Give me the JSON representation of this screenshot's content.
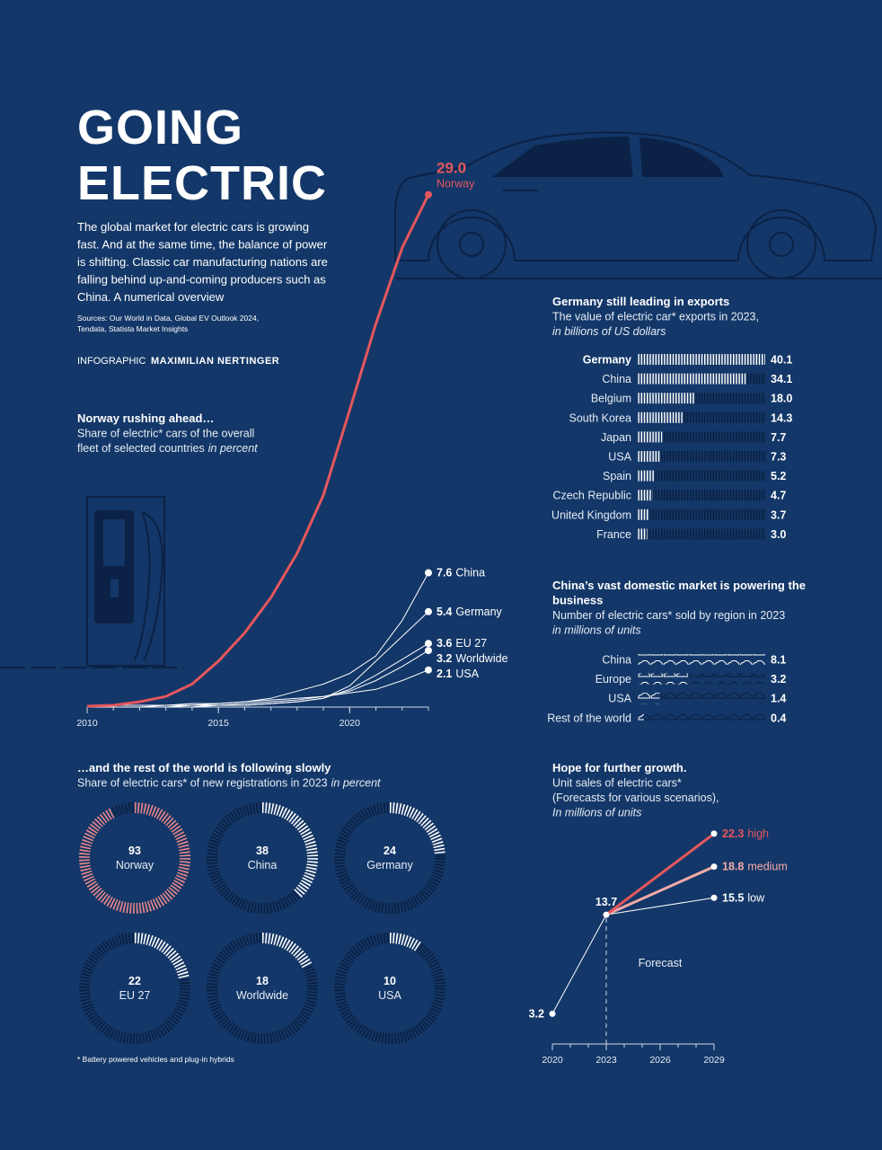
{
  "header": {
    "title": [
      "GOING",
      "ELECTRIC"
    ],
    "intro": [
      "The global market for electric cars is growing",
      "fast. And at the same time, the balance of power",
      "is shifting. Classic car manufacturing nations are",
      "falling behind up-and-coming producers such as",
      "China. A numerical overview"
    ],
    "sources": [
      "Sources: Our World in Data, Global EV Outlook 2024,",
      "Tendata, Statista Market Insights"
    ],
    "kicker": "INFOGRAPHIC",
    "author": "MAXIMILIAN NERTINGER"
  },
  "chart_data": [
    {
      "type": "line",
      "title": "Norway rushing ahead…",
      "subtitle": [
        "Share of electric* cars of the overall",
        "fleet of selected countries"
      ],
      "unit": "in percent",
      "x": [
        2010,
        2011,
        2012,
        2013,
        2014,
        2015,
        2016,
        2017,
        2018,
        2019,
        2020,
        2021,
        2022,
        2023
      ],
      "xlim": [
        2010,
        2023
      ],
      "xticks": [
        2010,
        2015,
        2020
      ],
      "ylim": [
        0,
        30
      ],
      "series": [
        {
          "name": "Norway",
          "color": "#e5575c",
          "values": [
            0.05,
            0.1,
            0.3,
            0.6,
            1.3,
            2.6,
            4.2,
            6.2,
            8.7,
            12.0,
            16.8,
            21.7,
            26.0,
            29.0
          ],
          "value_labels": [
            null,
            null,
            null,
            null,
            null,
            null,
            null,
            null,
            null,
            null,
            null,
            null,
            null,
            "29.0"
          ]
        },
        {
          "name": "China",
          "color": "#ffffff",
          "values": [
            0,
            0,
            0,
            0.1,
            0.1,
            0.2,
            0.3,
            0.5,
            0.9,
            1.3,
            1.9,
            2.9,
            4.9,
            7.6
          ],
          "value_labels": [
            null,
            null,
            null,
            null,
            null,
            null,
            null,
            null,
            null,
            null,
            null,
            null,
            null,
            "7.6"
          ]
        },
        {
          "name": "Germany",
          "color": "#ffffff",
          "values": [
            0,
            0,
            0,
            0,
            0,
            0.1,
            0.1,
            0.2,
            0.3,
            0.5,
            1.2,
            2.6,
            4.0,
            5.4
          ],
          "value_labels": [
            null,
            null,
            null,
            null,
            null,
            null,
            null,
            null,
            null,
            null,
            null,
            null,
            null,
            "5.4"
          ]
        },
        {
          "name": "Worldwide",
          "color": "#ffffff",
          "values": [
            0,
            0,
            0,
            0,
            0.1,
            0.1,
            0.2,
            0.3,
            0.4,
            0.6,
            0.9,
            1.5,
            2.3,
            3.2
          ],
          "value_labels": [
            null,
            null,
            null,
            null,
            null,
            null,
            null,
            null,
            null,
            null,
            null,
            null,
            null,
            "3.2"
          ]
        },
        {
          "name": "EU 27",
          "color": "#ffffff",
          "values": [
            0,
            0,
            0,
            0,
            0,
            0.1,
            0.1,
            0.2,
            0.3,
            0.5,
            1.0,
            1.8,
            2.7,
            3.6
          ],
          "value_labels": [
            null,
            null,
            null,
            null,
            null,
            null,
            null,
            null,
            null,
            null,
            null,
            null,
            null,
            "3.6"
          ]
        },
        {
          "name": "USA",
          "color": "#ffffff",
          "values": [
            0.1,
            0.1,
            0.1,
            0.1,
            0.2,
            0.2,
            0.3,
            0.4,
            0.5,
            0.6,
            0.8,
            1.0,
            1.5,
            2.1
          ],
          "value_labels": [
            null,
            null,
            null,
            null,
            null,
            null,
            null,
            null,
            null,
            null,
            null,
            null,
            null,
            "2.1"
          ]
        }
      ]
    },
    {
      "type": "bar",
      "title": "Germany still leading in exports",
      "subtitle": [
        "The value of electric car* exports in 2023,"
      ],
      "unit": "in billions of US dollars",
      "categories": [
        "Germany",
        "China",
        "Belgium",
        "South Korea",
        "Japan",
        "USA",
        "Spain",
        "Czech Republic",
        "United Kingdom",
        "France"
      ],
      "values": [
        40.1,
        34.1,
        18.0,
        14.3,
        7.7,
        7.3,
        5.2,
        4.7,
        3.7,
        3.0
      ],
      "value_labels": [
        "40.1",
        "34.1",
        "18.0",
        "14.3",
        "7.7",
        "7.3",
        "5.2",
        "4.7",
        "3.7",
        "3.0"
      ],
      "xlim": [
        0,
        40.1
      ],
      "color": "#ffffff"
    },
    {
      "type": "bar",
      "title": [
        "China’s vast domestic market is powering the",
        "business"
      ],
      "subtitle": [
        "Number of electric cars* sold by region in 2023"
      ],
      "unit": "in millions of units",
      "categories": [
        "China",
        "Europe",
        "USA",
        "Rest of the world"
      ],
      "values": [
        8.1,
        3.2,
        1.4,
        0.4
      ],
      "xlim": [
        0,
        8.1
      ],
      "color": "#ffffff"
    },
    {
      "type": "donut",
      "title": "…and the rest of the world is following slowly",
      "subtitle": [
        "Share of electric cars* of new registrations in 2023"
      ],
      "unit": "in percent",
      "categories": [
        "Norway",
        "China",
        "Germany",
        "EU 27",
        "Worldwide",
        "USA"
      ],
      "values": [
        93,
        38,
        24,
        22,
        18,
        10
      ],
      "ylim": [
        0,
        100
      ],
      "colors": [
        "#e8898d",
        "#ffffff",
        "#ffffff",
        "#ffffff",
        "#ffffff",
        "#ffffff"
      ]
    },
    {
      "type": "line",
      "title": "Hope for further growth.",
      "subtitle": [
        "Unit sales of electric cars*",
        "(Forecasts for various scenarios),"
      ],
      "unit": "In millions of units",
      "x": [
        2020,
        2023,
        2029
      ],
      "xlim": [
        2020,
        2029
      ],
      "xticks": [
        2020,
        2023,
        2026,
        2029
      ],
      "ylim": [
        0,
        24
      ],
      "annotation": "Forecast",
      "forecast_start": 2023,
      "series": [
        {
          "color": "#ffffff",
          "values": [
            3.2,
            13.7,
            null
          ],
          "value_labels": [
            "3.2",
            "13.7",
            null
          ]
        },
        {
          "name": "high",
          "color": "#e5575c",
          "values": [
            null,
            13.7,
            22.3
          ],
          "value_labels": [
            null,
            null,
            "22.3"
          ]
        },
        {
          "name": "medium",
          "color": "#f3aaa8",
          "values": [
            null,
            13.7,
            18.8
          ],
          "value_labels": [
            null,
            null,
            "18.8"
          ]
        },
        {
          "name": "low",
          "color": "#ffffff",
          "values": [
            null,
            13.7,
            15.5
          ],
          "value_labels": [
            null,
            null,
            "15.5"
          ]
        }
      ]
    }
  ],
  "footnote": "* Battery powered vehicles and plug-in hybrids"
}
